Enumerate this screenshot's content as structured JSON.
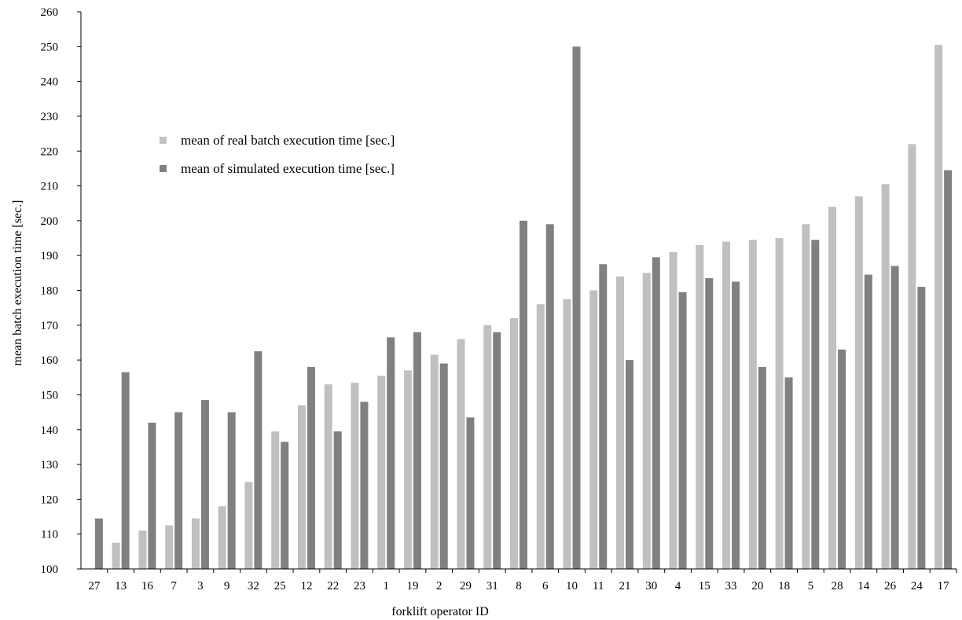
{
  "chart_data": {
    "type": "bar",
    "title": "",
    "xlabel": "forklift operator ID",
    "ylabel": "mean batch execution time [sec.]",
    "ylim": [
      100,
      260
    ],
    "yticks": [
      100,
      110,
      120,
      130,
      140,
      150,
      160,
      170,
      180,
      190,
      200,
      210,
      220,
      230,
      240,
      250,
      260
    ],
    "grid": false,
    "legend_position": "upper-left",
    "categories": [
      "27",
      "13",
      "16",
      "7",
      "3",
      "9",
      "32",
      "25",
      "12",
      "22",
      "23",
      "1",
      "19",
      "2",
      "29",
      "31",
      "8",
      "6",
      "10",
      "11",
      "21",
      "30",
      "4",
      "15",
      "33",
      "20",
      "18",
      "5",
      "28",
      "14",
      "26",
      "24",
      "17"
    ],
    "series": [
      {
        "name": "mean of real batch execution time [sec.]",
        "color": "#c0c0c0",
        "values": [
          100,
          107.5,
          111,
          112.5,
          114.5,
          118,
          125,
          139.5,
          147,
          153,
          153.5,
          155.5,
          157,
          161.5,
          166,
          170,
          172,
          176,
          177.5,
          180,
          184,
          185,
          191,
          193,
          194,
          194.5,
          195,
          199,
          204,
          207,
          210.5,
          222,
          250.5
        ]
      },
      {
        "name": "mean of simulated execution time [sec.]",
        "color": "#808080",
        "values": [
          114.5,
          156.5,
          142,
          145,
          148.5,
          145,
          162.5,
          136.5,
          158,
          139.5,
          148,
          166.5,
          168,
          159,
          143.5,
          168,
          200,
          199,
          250,
          187.5,
          160,
          189.5,
          179.5,
          183.5,
          182.5,
          158,
          155,
          194.5,
          163,
          184.5,
          187,
          181,
          214.5
        ]
      }
    ]
  }
}
